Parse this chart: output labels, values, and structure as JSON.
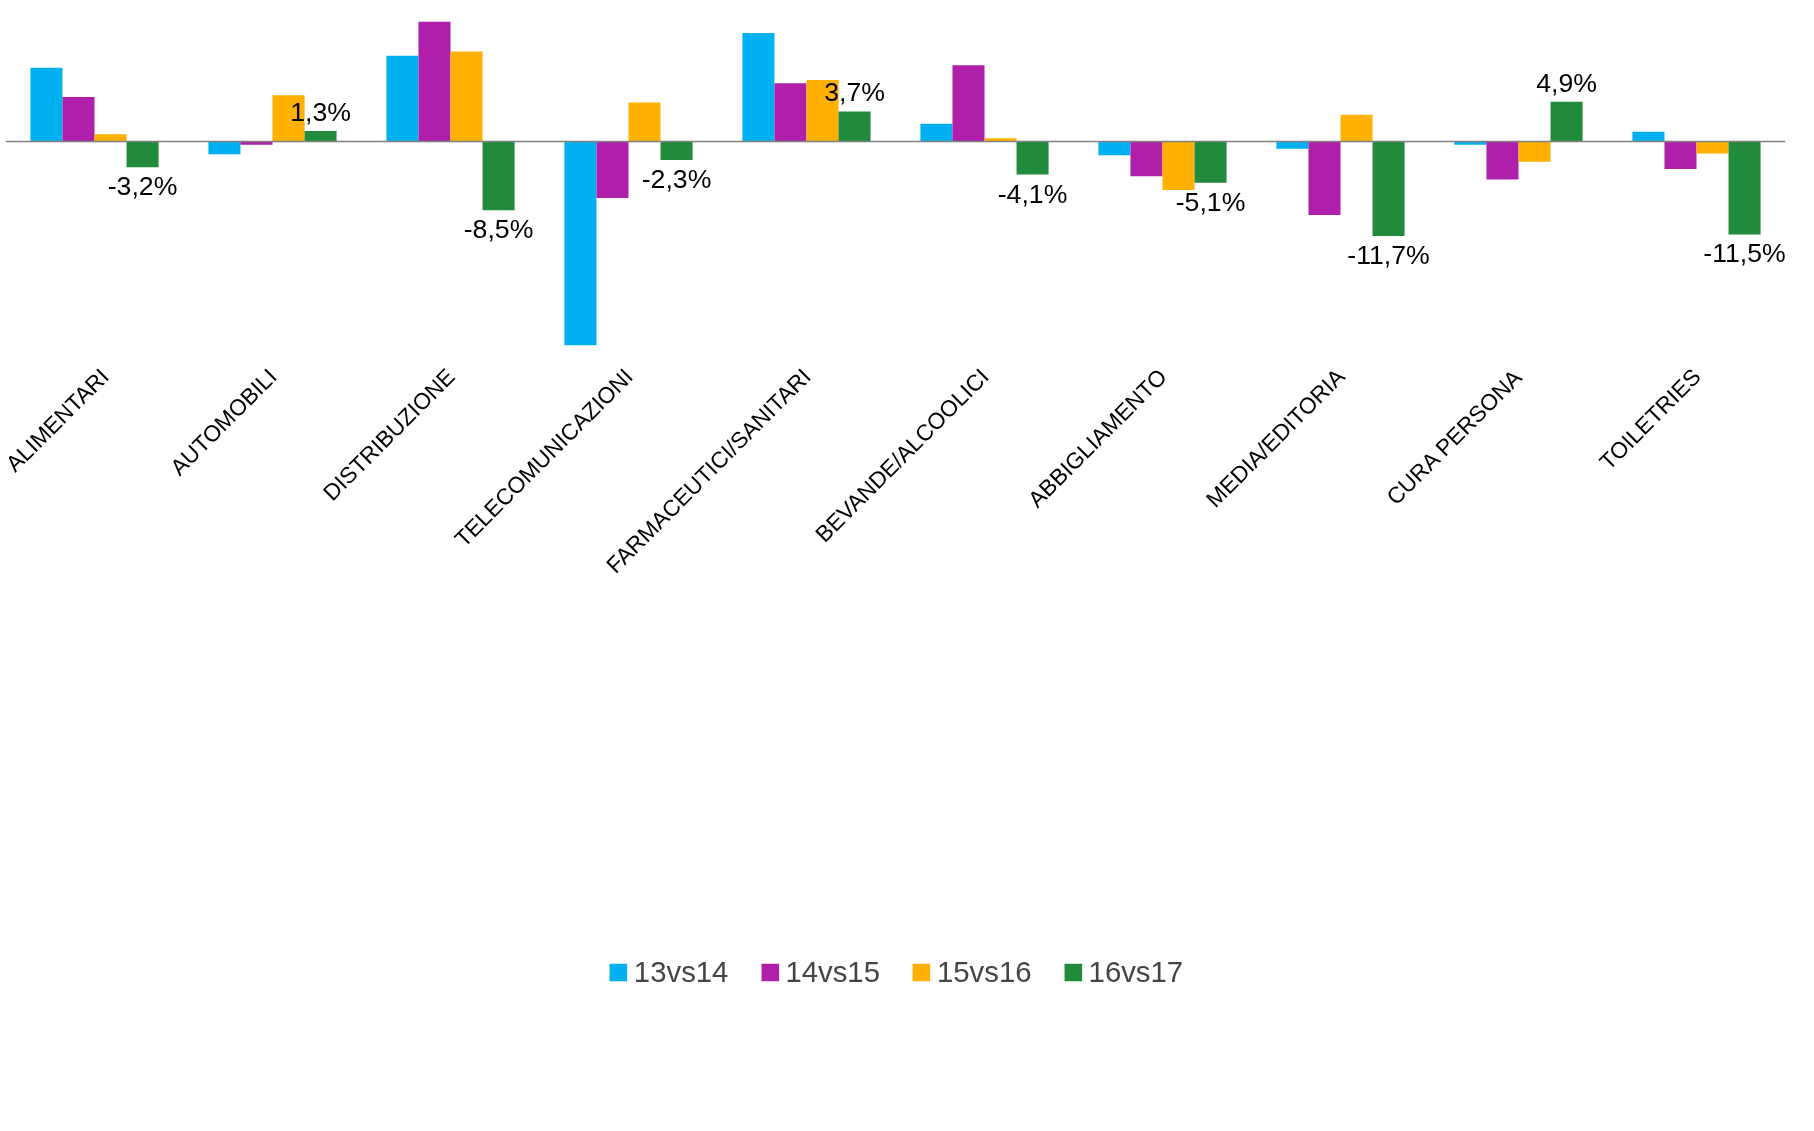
{
  "chart_data": {
    "type": "bar",
    "categories": [
      "ALIMENTARI",
      "AUTOMOBILI",
      "DISTRIBUZIONE",
      "TELECOMUNICAZIONI",
      "FARMACEUTICI/SANITARI",
      "BEVANDE/ALCOOLICI",
      "ABBIGLIAMENTO",
      "MEDIA/EDITORIA",
      "CURA PERSONA",
      "TOILETRIES"
    ],
    "series": [
      {
        "name": "13vs14",
        "color": "#00b0f0",
        "values": [
          9.1,
          -1.6,
          10.6,
          -25.2,
          13.4,
          2.2,
          -1.7,
          -0.9,
          -0.4,
          1.2
        ]
      },
      {
        "name": "14vs15",
        "color": "#b01faa",
        "values": [
          5.5,
          -0.4,
          14.8,
          -7.0,
          7.2,
          9.4,
          -4.3,
          -9.1,
          -4.7,
          -3.4
        ]
      },
      {
        "name": "15vs16",
        "color": "#ffb000",
        "values": [
          0.9,
          5.7,
          11.1,
          4.8,
          7.6,
          0.4,
          -6.0,
          3.3,
          -2.5,
          -1.5
        ]
      },
      {
        "name": "16vs17",
        "color": "#228b3b",
        "values": [
          -3.2,
          1.3,
          -8.5,
          -2.3,
          3.7,
          -4.1,
          -5.1,
          -11.7,
          4.9,
          -11.5
        ],
        "value_labels": [
          "-3,2%",
          "1,3%",
          "-8,5%",
          "-2,3%",
          "3,7%",
          "-4,1%",
          "-5,1%",
          "-11,7%",
          "4,9%",
          "-11,5%"
        ]
      }
    ],
    "tick_labels": "x",
    "grid": false,
    "legend": "bottom"
  }
}
